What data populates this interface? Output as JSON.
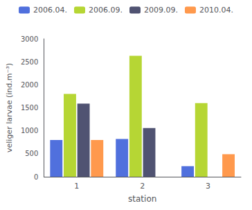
{
  "chart_data": {
    "type": "bar",
    "categories": [
      "1",
      "2",
      "3"
    ],
    "series": [
      {
        "name": "2006.04.",
        "values": [
          800,
          820,
          230
        ]
      },
      {
        "name": "2006.09.",
        "values": [
          1800,
          2630,
          1600
        ]
      },
      {
        "name": "2009.09.",
        "values": [
          1590,
          1060,
          0
        ]
      },
      {
        "name": "2010.04.",
        "values": [
          800,
          0,
          490
        ]
      }
    ],
    "xlabel": "station",
    "ylabel": "veliger larvae (ind.m⁻³)",
    "ylim": [
      0,
      3000
    ],
    "yticks": [
      0,
      500,
      1000,
      1500,
      2000,
      2500,
      3000
    ],
    "grid": false,
    "legend": "top"
  }
}
